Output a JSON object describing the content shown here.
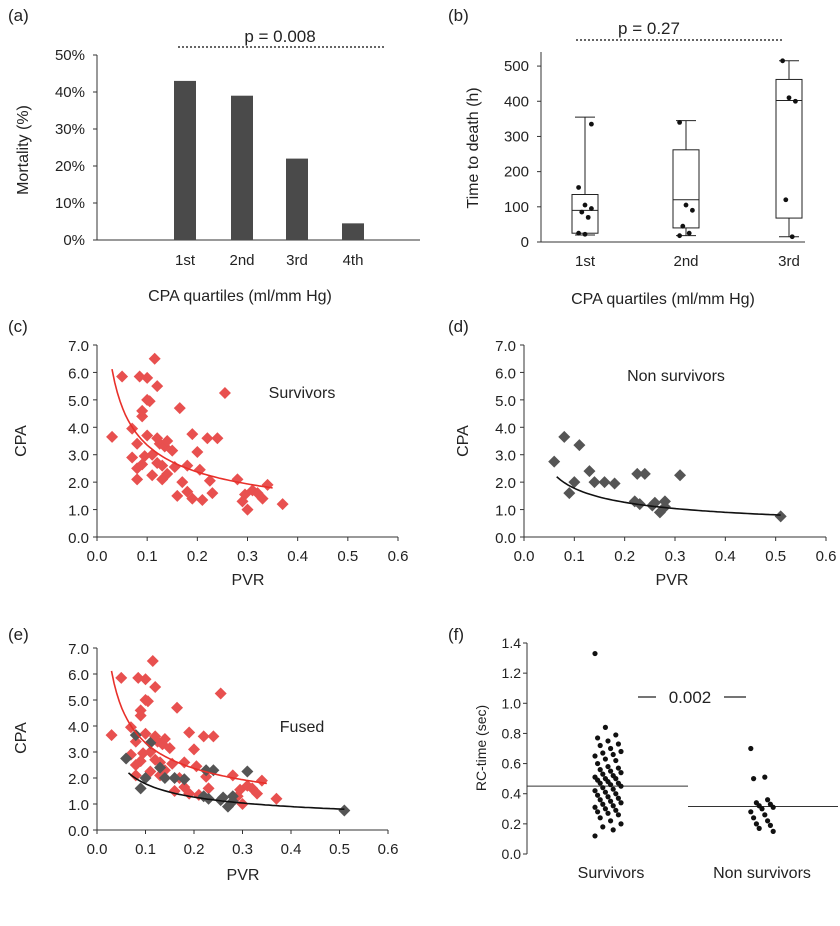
{
  "chart_data": [
    {
      "panel": "(a)",
      "type": "bar",
      "categories": [
        "1st",
        "2nd",
        "3rd",
        "4th"
      ],
      "values": [
        43,
        39,
        22,
        4.5
      ],
      "value_unit": "%",
      "ylabel": "Mortality (%)",
      "xlabel": "CPA quartiles (ml/mm Hg)",
      "yticks": [
        "0%",
        "10%",
        "20%",
        "30%",
        "40%",
        "50%"
      ],
      "ylim": [
        0,
        50
      ],
      "annotation": "p = 0.008",
      "bar_color": "#4a4a4a"
    },
    {
      "panel": "(b)",
      "type": "box",
      "categories": [
        "1st",
        "2nd",
        "3rd"
      ],
      "boxes": [
        {
          "whisker_low": 20,
          "q1": 25,
          "median": 90,
          "q3": 135,
          "whisker_high": 355
        },
        {
          "whisker_low": 18,
          "q1": 40,
          "median": 120,
          "q3": 262,
          "whisker_high": 345
        },
        {
          "whisker_low": 15,
          "q1": 68,
          "median": 402,
          "q3": 462,
          "whisker_high": 515
        }
      ],
      "points": [
        [
          155,
          105,
          95,
          85,
          70,
          25,
          22,
          335
        ],
        [
          340,
          105,
          90,
          45,
          25,
          18
        ],
        [
          515,
          410,
          400,
          120,
          15
        ]
      ],
      "ylabel": "Time to death (h)",
      "xlabel": "CPA quartiles (ml/mm Hg)",
      "yticks": [
        "0",
        "100",
        "200",
        "300",
        "400",
        "500"
      ],
      "ylim": [
        0,
        540
      ],
      "annotation": "p = 0.27"
    },
    {
      "panel": "(c)",
      "type": "scatter",
      "title": "Survivors",
      "xlabel": "PVR",
      "ylabel": "CPA",
      "xticks": [
        "0.0",
        "0.1",
        "0.2",
        "0.3",
        "0.4",
        "0.5",
        "0.6"
      ],
      "yticks": [
        "0.0",
        "1.0",
        "2.0",
        "3.0",
        "4.0",
        "5.0",
        "6.0",
        "7.0"
      ],
      "xlim": [
        0,
        0.6
      ],
      "ylim": [
        0,
        7
      ],
      "marker_color": "#e8504f",
      "trend_color": "#e8302a",
      "trend": {
        "a": 1.06,
        "b": -0.5,
        "x_range": [
          0.03,
          0.35
        ]
      },
      "points": [
        [
          0.03,
          3.65
        ],
        [
          0.05,
          5.85
        ],
        [
          0.07,
          3.95
        ],
        [
          0.07,
          2.9
        ],
        [
          0.08,
          2.1
        ],
        [
          0.08,
          2.5
        ],
        [
          0.08,
          3.4
        ],
        [
          0.085,
          5.85
        ],
        [
          0.09,
          4.4
        ],
        [
          0.09,
          4.6
        ],
        [
          0.09,
          2.65
        ],
        [
          0.095,
          2.95
        ],
        [
          0.1,
          3.7
        ],
        [
          0.1,
          5.0
        ],
        [
          0.1,
          5.8
        ],
        [
          0.105,
          4.95
        ],
        [
          0.11,
          3.0
        ],
        [
          0.11,
          2.25
        ],
        [
          0.115,
          6.5
        ],
        [
          0.12,
          5.5
        ],
        [
          0.12,
          3.6
        ],
        [
          0.12,
          2.7
        ],
        [
          0.125,
          3.4
        ],
        [
          0.13,
          2.1
        ],
        [
          0.13,
          2.6
        ],
        [
          0.135,
          3.3
        ],
        [
          0.14,
          3.5
        ],
        [
          0.14,
          2.3
        ],
        [
          0.15,
          3.15
        ],
        [
          0.155,
          2.55
        ],
        [
          0.16,
          1.5
        ],
        [
          0.165,
          4.7
        ],
        [
          0.17,
          2.0
        ],
        [
          0.18,
          2.6
        ],
        [
          0.18,
          1.65
        ],
        [
          0.19,
          3.75
        ],
        [
          0.19,
          1.4
        ],
        [
          0.2,
          3.1
        ],
        [
          0.205,
          2.45
        ],
        [
          0.21,
          1.35
        ],
        [
          0.22,
          3.6
        ],
        [
          0.225,
          2.05
        ],
        [
          0.23,
          1.6
        ],
        [
          0.24,
          3.6
        ],
        [
          0.255,
          5.25
        ],
        [
          0.28,
          2.1
        ],
        [
          0.29,
          1.3
        ],
        [
          0.295,
          1.55
        ],
        [
          0.3,
          1.0
        ],
        [
          0.31,
          1.7
        ],
        [
          0.32,
          1.6
        ],
        [
          0.33,
          1.4
        ],
        [
          0.34,
          1.9
        ],
        [
          0.37,
          1.2
        ]
      ]
    },
    {
      "panel": "(d)",
      "type": "scatter",
      "title": "Non survivors",
      "xlabel": "PVR",
      "ylabel": "CPA",
      "xticks": [
        "0.0",
        "0.1",
        "0.2",
        "0.3",
        "0.4",
        "0.5",
        "0.6"
      ],
      "yticks": [
        "0.0",
        "1.0",
        "2.0",
        "3.0",
        "4.0",
        "5.0",
        "6.0",
        "7.0"
      ],
      "xlim": [
        0,
        0.6
      ],
      "ylim": [
        0,
        7
      ],
      "marker_color": "#555555",
      "trend_color": "#111111",
      "trend": {
        "a": 0.575,
        "b": -0.49,
        "x_range": [
          0.065,
          0.51
        ]
      },
      "points": [
        [
          0.06,
          2.75
        ],
        [
          0.08,
          3.65
        ],
        [
          0.09,
          1.6
        ],
        [
          0.1,
          2.0
        ],
        [
          0.11,
          3.35
        ],
        [
          0.13,
          2.4
        ],
        [
          0.14,
          2.0
        ],
        [
          0.16,
          2.0
        ],
        [
          0.18,
          1.95
        ],
        [
          0.22,
          1.3
        ],
        [
          0.225,
          2.3
        ],
        [
          0.23,
          1.2
        ],
        [
          0.24,
          2.3
        ],
        [
          0.255,
          1.15
        ],
        [
          0.26,
          1.25
        ],
        [
          0.27,
          0.9
        ],
        [
          0.28,
          1.3
        ],
        [
          0.28,
          1.1
        ],
        [
          0.31,
          2.25
        ],
        [
          0.51,
          0.75
        ]
      ]
    },
    {
      "panel": "(e)",
      "type": "scatter",
      "title": "Fused",
      "xlabel": "PVR",
      "ylabel": "CPA",
      "xticks": [
        "0.0",
        "0.1",
        "0.2",
        "0.3",
        "0.4",
        "0.5",
        "0.6"
      ],
      "yticks": [
        "0.0",
        "1.0",
        "2.0",
        "3.0",
        "4.0",
        "5.0",
        "6.0",
        "7.0"
      ],
      "xlim": [
        0,
        0.6
      ],
      "ylim": [
        0,
        7
      ],
      "combines_panels": [
        "(c)",
        "(d)"
      ]
    },
    {
      "panel": "(f)",
      "type": "scatter",
      "categories": [
        "Survivors",
        "Non survivors"
      ],
      "ylabel": "RC-time (sec)",
      "yticks": [
        "0.0",
        "0.2",
        "0.4",
        "0.6",
        "0.8",
        "1.0",
        "1.2",
        "1.4"
      ],
      "ylim": [
        0,
        1.4
      ],
      "means": [
        0.45,
        0.315
      ],
      "annotation": "0.002",
      "survivors": [
        1.33,
        0.84,
        0.79,
        0.77,
        0.75,
        0.73,
        0.72,
        0.7,
        0.68,
        0.67,
        0.66,
        0.65,
        0.63,
        0.62,
        0.6,
        0.58,
        0.57,
        0.56,
        0.55,
        0.54,
        0.53,
        0.52,
        0.51,
        0.5,
        0.5,
        0.49,
        0.48,
        0.47,
        0.47,
        0.46,
        0.45,
        0.44,
        0.43,
        0.42,
        0.41,
        0.4,
        0.39,
        0.38,
        0.37,
        0.36,
        0.35,
        0.34,
        0.33,
        0.32,
        0.31,
        0.3,
        0.29,
        0.28,
        0.27,
        0.26,
        0.24,
        0.22,
        0.2,
        0.18,
        0.16,
        0.12
      ],
      "non_survivors": [
        0.7,
        0.51,
        0.5,
        0.36,
        0.34,
        0.33,
        0.32,
        0.31,
        0.3,
        0.28,
        0.26,
        0.24,
        0.22,
        0.2,
        0.19,
        0.17,
        0.15
      ]
    }
  ]
}
